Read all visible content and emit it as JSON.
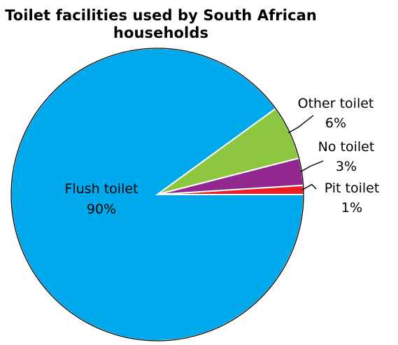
{
  "chart_data": {
    "type": "pie",
    "title_lines": [
      "Toilet facilities used by South African",
      "households"
    ],
    "slices": [
      {
        "name": "Flush toilet",
        "value": 90,
        "value_label": "90%",
        "color": "#00a9ec"
      },
      {
        "name": "Other toilet",
        "value": 6,
        "value_label": "6%",
        "color": "#8dc63f"
      },
      {
        "name": "No toilet",
        "value": 3,
        "value_label": "3%",
        "color": "#92278f"
      },
      {
        "name": "Pit toilet",
        "value": 1,
        "value_label": "1%",
        "color": "#ed1c24"
      }
    ],
    "legend": "none",
    "labels": "outside with leader lines (inside for largest slice)"
  }
}
